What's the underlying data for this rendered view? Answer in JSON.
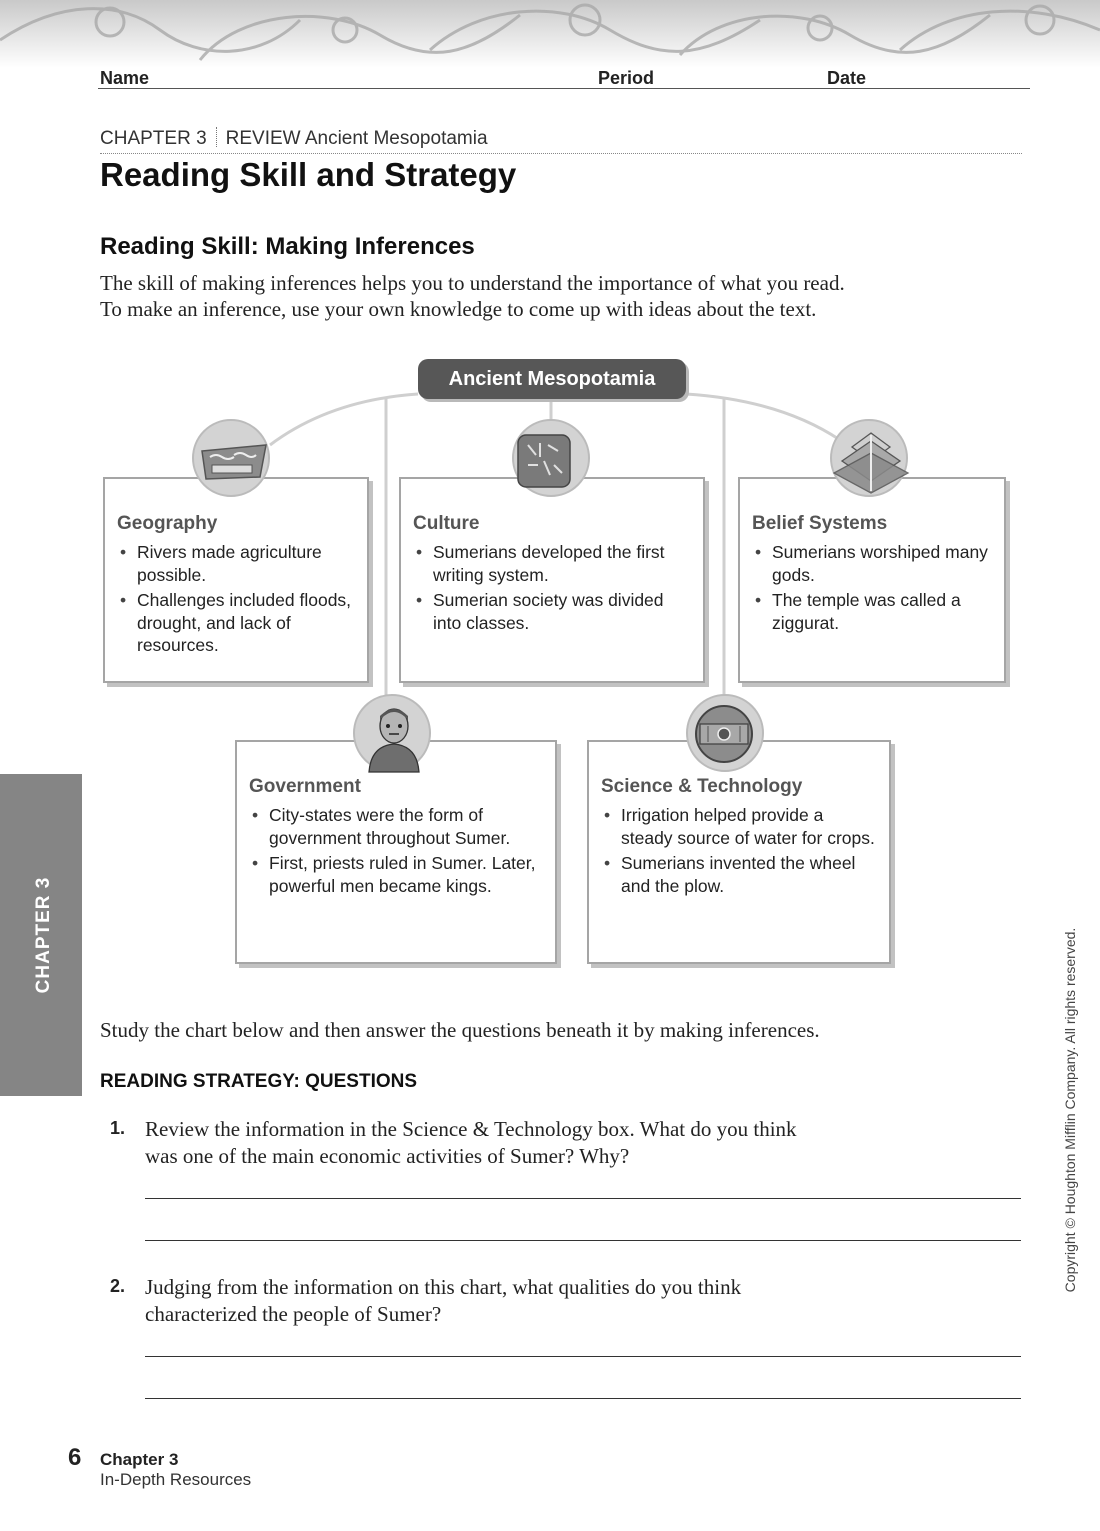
{
  "header": {
    "name_label": "Name",
    "period_label": "Period",
    "date_label": "Date"
  },
  "chapter_line": {
    "chapter": "CHAPTER 3",
    "review": "REVIEW Ancient Mesopotamia"
  },
  "title": "Reading Skill and Strategy",
  "skill": {
    "heading": "Reading Skill: Making Inferences",
    "lines": [
      "The skill of making inferences helps you to understand the importance of what you read.",
      "To make an inference, use your own knowledge to come up with ideas about the text."
    ]
  },
  "diagram": {
    "center_title": "Ancient Mesopotamia",
    "boxes": [
      {
        "title": "Geography",
        "icon": "ancient-map-icon",
        "bullets": [
          "Rivers made agriculture possible.",
          "Challenges included floods, drought, and lack of resources."
        ]
      },
      {
        "title": "Culture",
        "icon": "cuneiform-tablet-icon",
        "bullets": [
          "Sumerians developed the first writing system.",
          "Sumerian society was divided into classes."
        ]
      },
      {
        "title": "Belief Systems",
        "icon": "ziggurat-icon",
        "bullets": [
          "Sumerians worshiped many gods.",
          "The temple was called a ziggurat."
        ]
      },
      {
        "title": "Government",
        "icon": "sumerian-ruler-statue-icon",
        "bullets": [
          "City-states were the form of government throughout Sumer.",
          "First, priests ruled in Sumer. Later, powerful men became kings."
        ]
      },
      {
        "title": "Science & Technology",
        "icon": "wheel-icon",
        "bullets": [
          "Irrigation helped provide a steady source of water for crops.",
          "Sumerians invented the wheel and the plow."
        ]
      }
    ]
  },
  "study_text": "Study the chart below and then answer the questions beneath it by making inferences.",
  "strategy_heading": "READING STRATEGY: QUESTIONS",
  "questions": [
    {
      "number": "1.",
      "lines": [
        "Review the information in the Science & Technology box. What do you think",
        "was one of the main economic activities of Sumer? Why?"
      ]
    },
    {
      "number": "2.",
      "lines": [
        "Judging from the information on this chart, what qualities do you think",
        "characterized the people of Sumer?"
      ]
    }
  ],
  "side_tab": "CHAPTER 3",
  "copyright": "Copyright © Houghton Mifflin Company. All rights reserved.",
  "footer": {
    "page_number": "6",
    "chapter": "Chapter 3",
    "resource": "In-Depth Resources"
  }
}
